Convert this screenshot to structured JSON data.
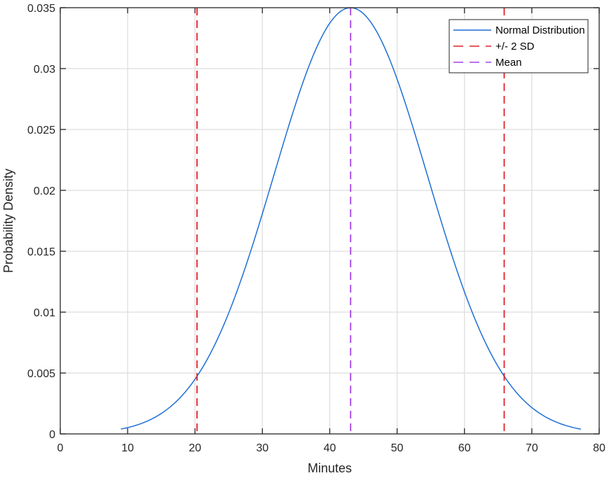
{
  "chart_data": {
    "type": "line",
    "title": "",
    "xlabel": "Minutes",
    "ylabel": "Probability Density",
    "xlim": [
      0,
      80
    ],
    "ylim": [
      0,
      0.035
    ],
    "xticks": [
      0,
      10,
      20,
      30,
      40,
      50,
      60,
      70,
      80
    ],
    "xtick_labels": [
      "0",
      "10",
      "20",
      "30",
      "40",
      "50",
      "60",
      "70",
      "80"
    ],
    "yticks": [
      0,
      0.005,
      0.01,
      0.015,
      0.02,
      0.025,
      0.03,
      0.035
    ],
    "ytick_labels": [
      "0",
      "0.005",
      "0.01",
      "0.015",
      "0.02",
      "0.025",
      "0.03",
      "0.035"
    ],
    "grid": true,
    "legend_position": "top-right",
    "series": [
      {
        "name": "Normal Distribution",
        "style": "solid",
        "color": "#1f6fd6",
        "distribution": {
          "mean": 43.1,
          "sd": 11.4
        },
        "x_range": [
          9.0,
          77.3
        ],
        "x": [
          9,
          12,
          15,
          18,
          21,
          24,
          27,
          30,
          33,
          36,
          39,
          42,
          43.1,
          45,
          48,
          51,
          54,
          57,
          60,
          63,
          66,
          69,
          72,
          75,
          77.3
        ],
        "y": [
          0.0004,
          0.0008,
          0.0017,
          0.003,
          0.0053,
          0.0085,
          0.0128,
          0.0179,
          0.0236,
          0.0287,
          0.0328,
          0.0349,
          0.035,
          0.0345,
          0.0318,
          0.0275,
          0.0222,
          0.0166,
          0.0117,
          0.0076,
          0.0046,
          0.0025,
          0.0013,
          0.0006,
          0.0004
        ]
      },
      {
        "name": "+/- 2 SD",
        "style": "dashed",
        "color": "#e0202a",
        "vertical_lines_x": [
          20.3,
          65.9
        ]
      },
      {
        "name": "Mean",
        "style": "dashed",
        "color": "#a040e8",
        "vertical_lines_x": [
          43.1
        ]
      }
    ]
  }
}
